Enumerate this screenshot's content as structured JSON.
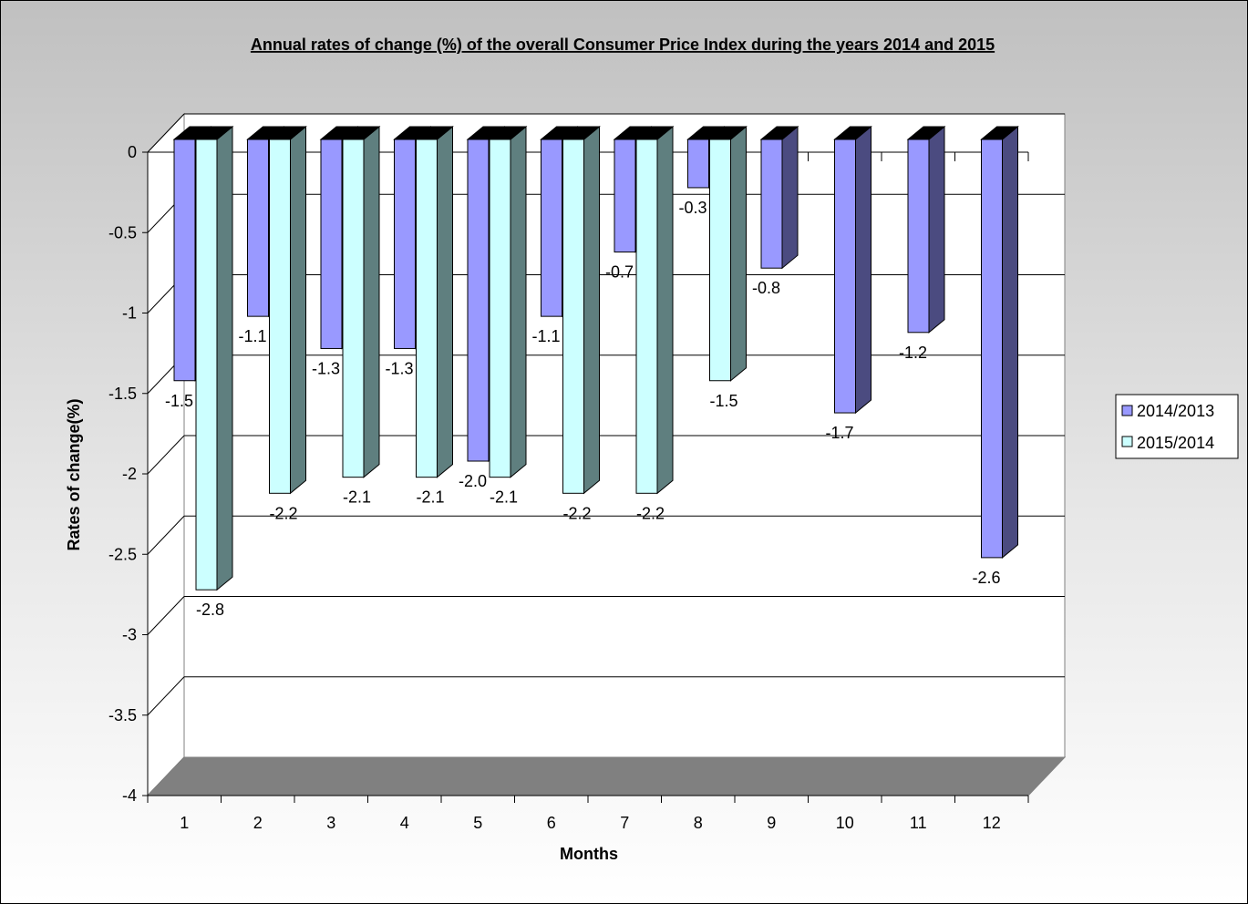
{
  "chart_data": {
    "type": "bar",
    "title": "Annual rates of change (%) of the overall Consumer Price Index during the years 2014 and 2015",
    "xlabel": "Months",
    "ylabel": "Rates of change(%)",
    "categories": [
      "1",
      "2",
      "3",
      "4",
      "5",
      "6",
      "7",
      "8",
      "9",
      "10",
      "11",
      "12"
    ],
    "ylim": [
      -4,
      0
    ],
    "y_ticks": [
      0,
      -0.5,
      -1,
      -1.5,
      -2,
      -2.5,
      -3,
      -3.5,
      -4
    ],
    "y_tick_labels": [
      "0",
      "-0.5",
      "-1",
      "-1.5",
      "-2",
      "-2.5",
      "-3",
      "-3.5",
      "-4"
    ],
    "grid": true,
    "legend_position": "right",
    "series": [
      {
        "name": "2014/2013",
        "color": "#9999ff",
        "values": [
          -1.5,
          -1.1,
          -1.3,
          -1.3,
          -2.0,
          -1.1,
          -0.7,
          -0.3,
          -0.8,
          -1.7,
          -1.2,
          -2.6
        ],
        "labels": [
          "-1.5",
          "-1.1",
          "-1.3",
          "-1.3",
          "-2.0",
          "-1.1",
          "-0.7",
          "-0.3",
          "-0.8",
          "-1.7",
          "-1.2",
          "-2.6"
        ]
      },
      {
        "name": "2015/2014",
        "color": "#ccffff",
        "values": [
          -2.8,
          -2.2,
          -2.1,
          -2.1,
          -2.1,
          -2.2,
          -2.2,
          -1.5,
          null,
          null,
          null,
          null
        ],
        "labels": [
          "-2.8",
          "-2.2",
          "-2.1",
          "-2.1",
          "-2.1",
          "-2.2",
          "-2.2",
          "-1.5",
          "",
          "",
          "",
          ""
        ]
      }
    ]
  }
}
